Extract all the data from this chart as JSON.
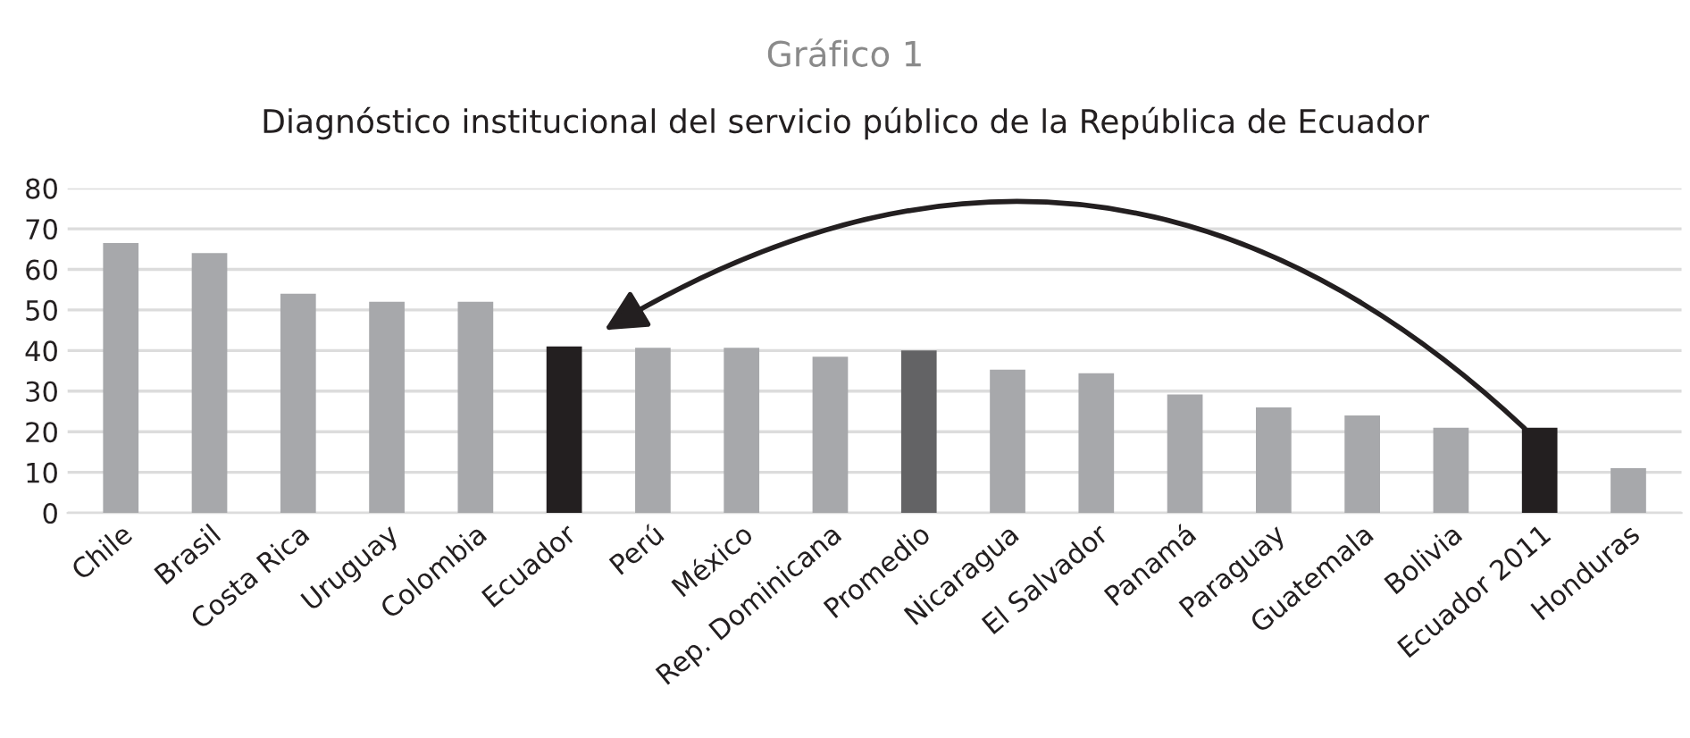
{
  "chart_data": {
    "type": "bar",
    "title": "Gráfico 1",
    "subtitle": "Diagnóstico institucional del servicio público de la República de Ecuador",
    "categories": [
      "Chile",
      "Brasil",
      "Costa Rica",
      "Uruguay",
      "Colombia",
      "Ecuador",
      "Perú",
      "México",
      "Rep. Dominicana",
      "Promedio",
      "Nicaragua",
      "El Salvador",
      "Panamá",
      "Paraguay",
      "Guatemala",
      "Bolivia",
      "Ecuador 2011",
      "Honduras"
    ],
    "values": [
      66.5,
      64,
      54,
      52,
      52,
      41,
      40.7,
      40.7,
      38.5,
      40,
      35.3,
      34.4,
      29.2,
      26,
      24,
      21,
      21,
      11
    ],
    "colors": [
      "#a7a8ab",
      "#a7a8ab",
      "#a7a8ab",
      "#a7a8ab",
      "#a7a8ab",
      "#231f20",
      "#a7a8ab",
      "#a7a8ab",
      "#a7a8ab",
      "#636365",
      "#a7a8ab",
      "#a7a8ab",
      "#a7a8ab",
      "#a7a8ab",
      "#a7a8ab",
      "#a7a8ab",
      "#231f20",
      "#a7a8ab"
    ],
    "ylim": [
      0,
      80
    ],
    "yticks": [
      0,
      10,
      20,
      30,
      40,
      50,
      60,
      70,
      80
    ],
    "grid": "y",
    "legend": false
  }
}
